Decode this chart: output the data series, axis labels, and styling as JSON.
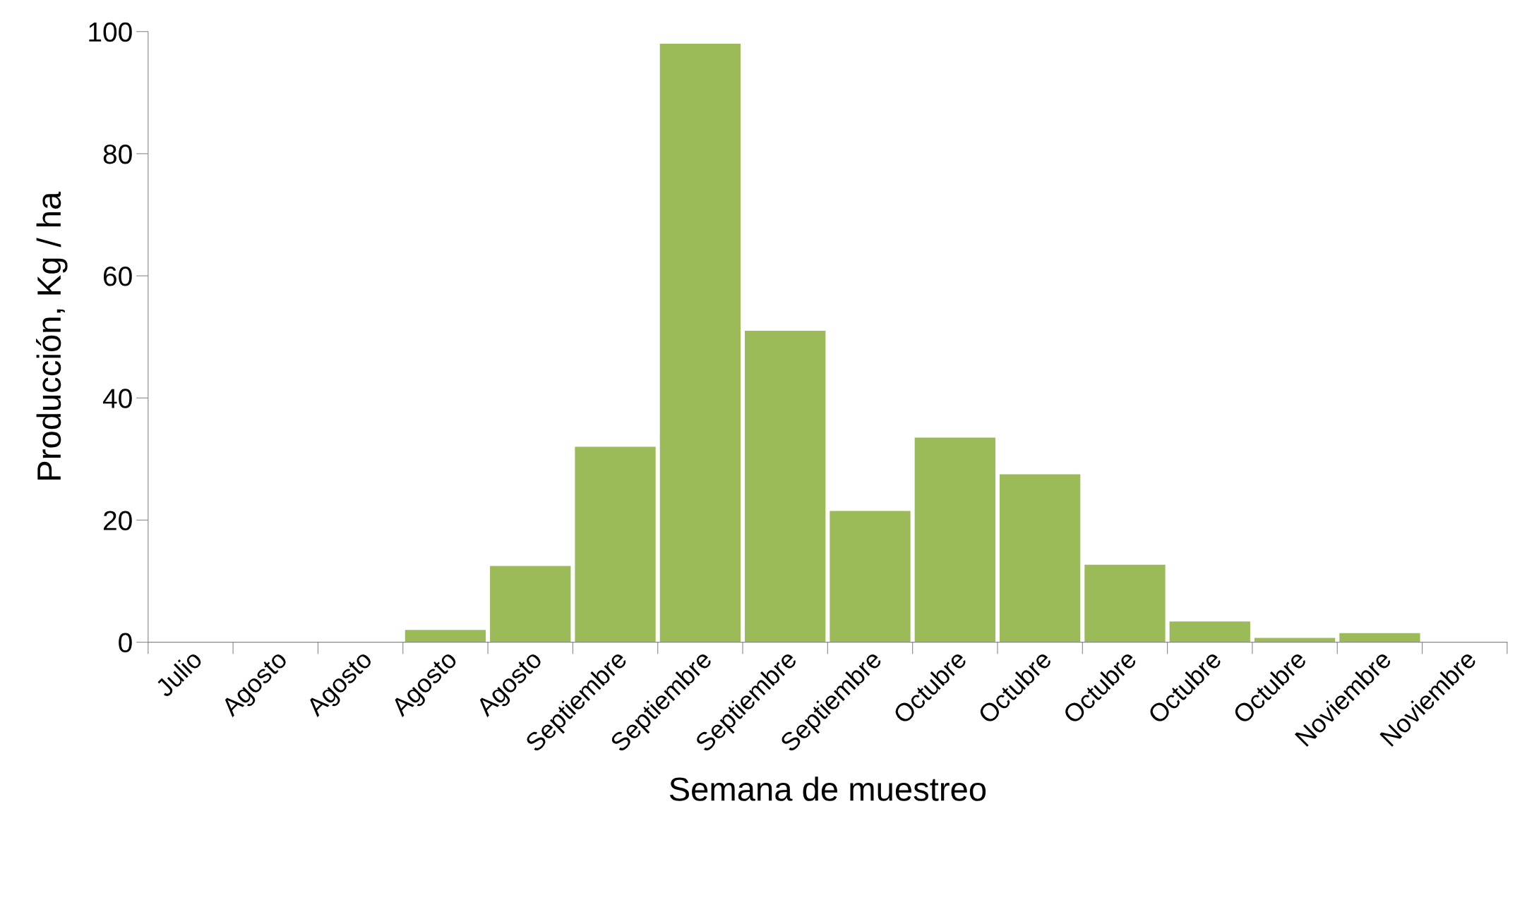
{
  "chart_data": {
    "type": "bar",
    "xlabel": "Semana de muestreo",
    "ylabel": "Producción, Kg / ha",
    "categories": [
      "Julio",
      "Agosto",
      "Agosto",
      "Agosto",
      "Agosto",
      "Septiembre",
      "Septiembre",
      "Septiembre",
      "Septiembre",
      "Octubre",
      "Octubre",
      "Octubre",
      "Octubre",
      "Octubre",
      "Noviembre",
      "Noviembre"
    ],
    "values": [
      0,
      0,
      0,
      2,
      12.5,
      32,
      98,
      51,
      21.5,
      33.5,
      27.5,
      12.7,
      3.4,
      0.7,
      1.5,
      0
    ],
    "color": "#9bbb59",
    "ylim": [
      0,
      100
    ],
    "yticks": [
      0,
      20,
      40,
      60,
      80,
      100
    ],
    "grid": false,
    "legend": false
  }
}
